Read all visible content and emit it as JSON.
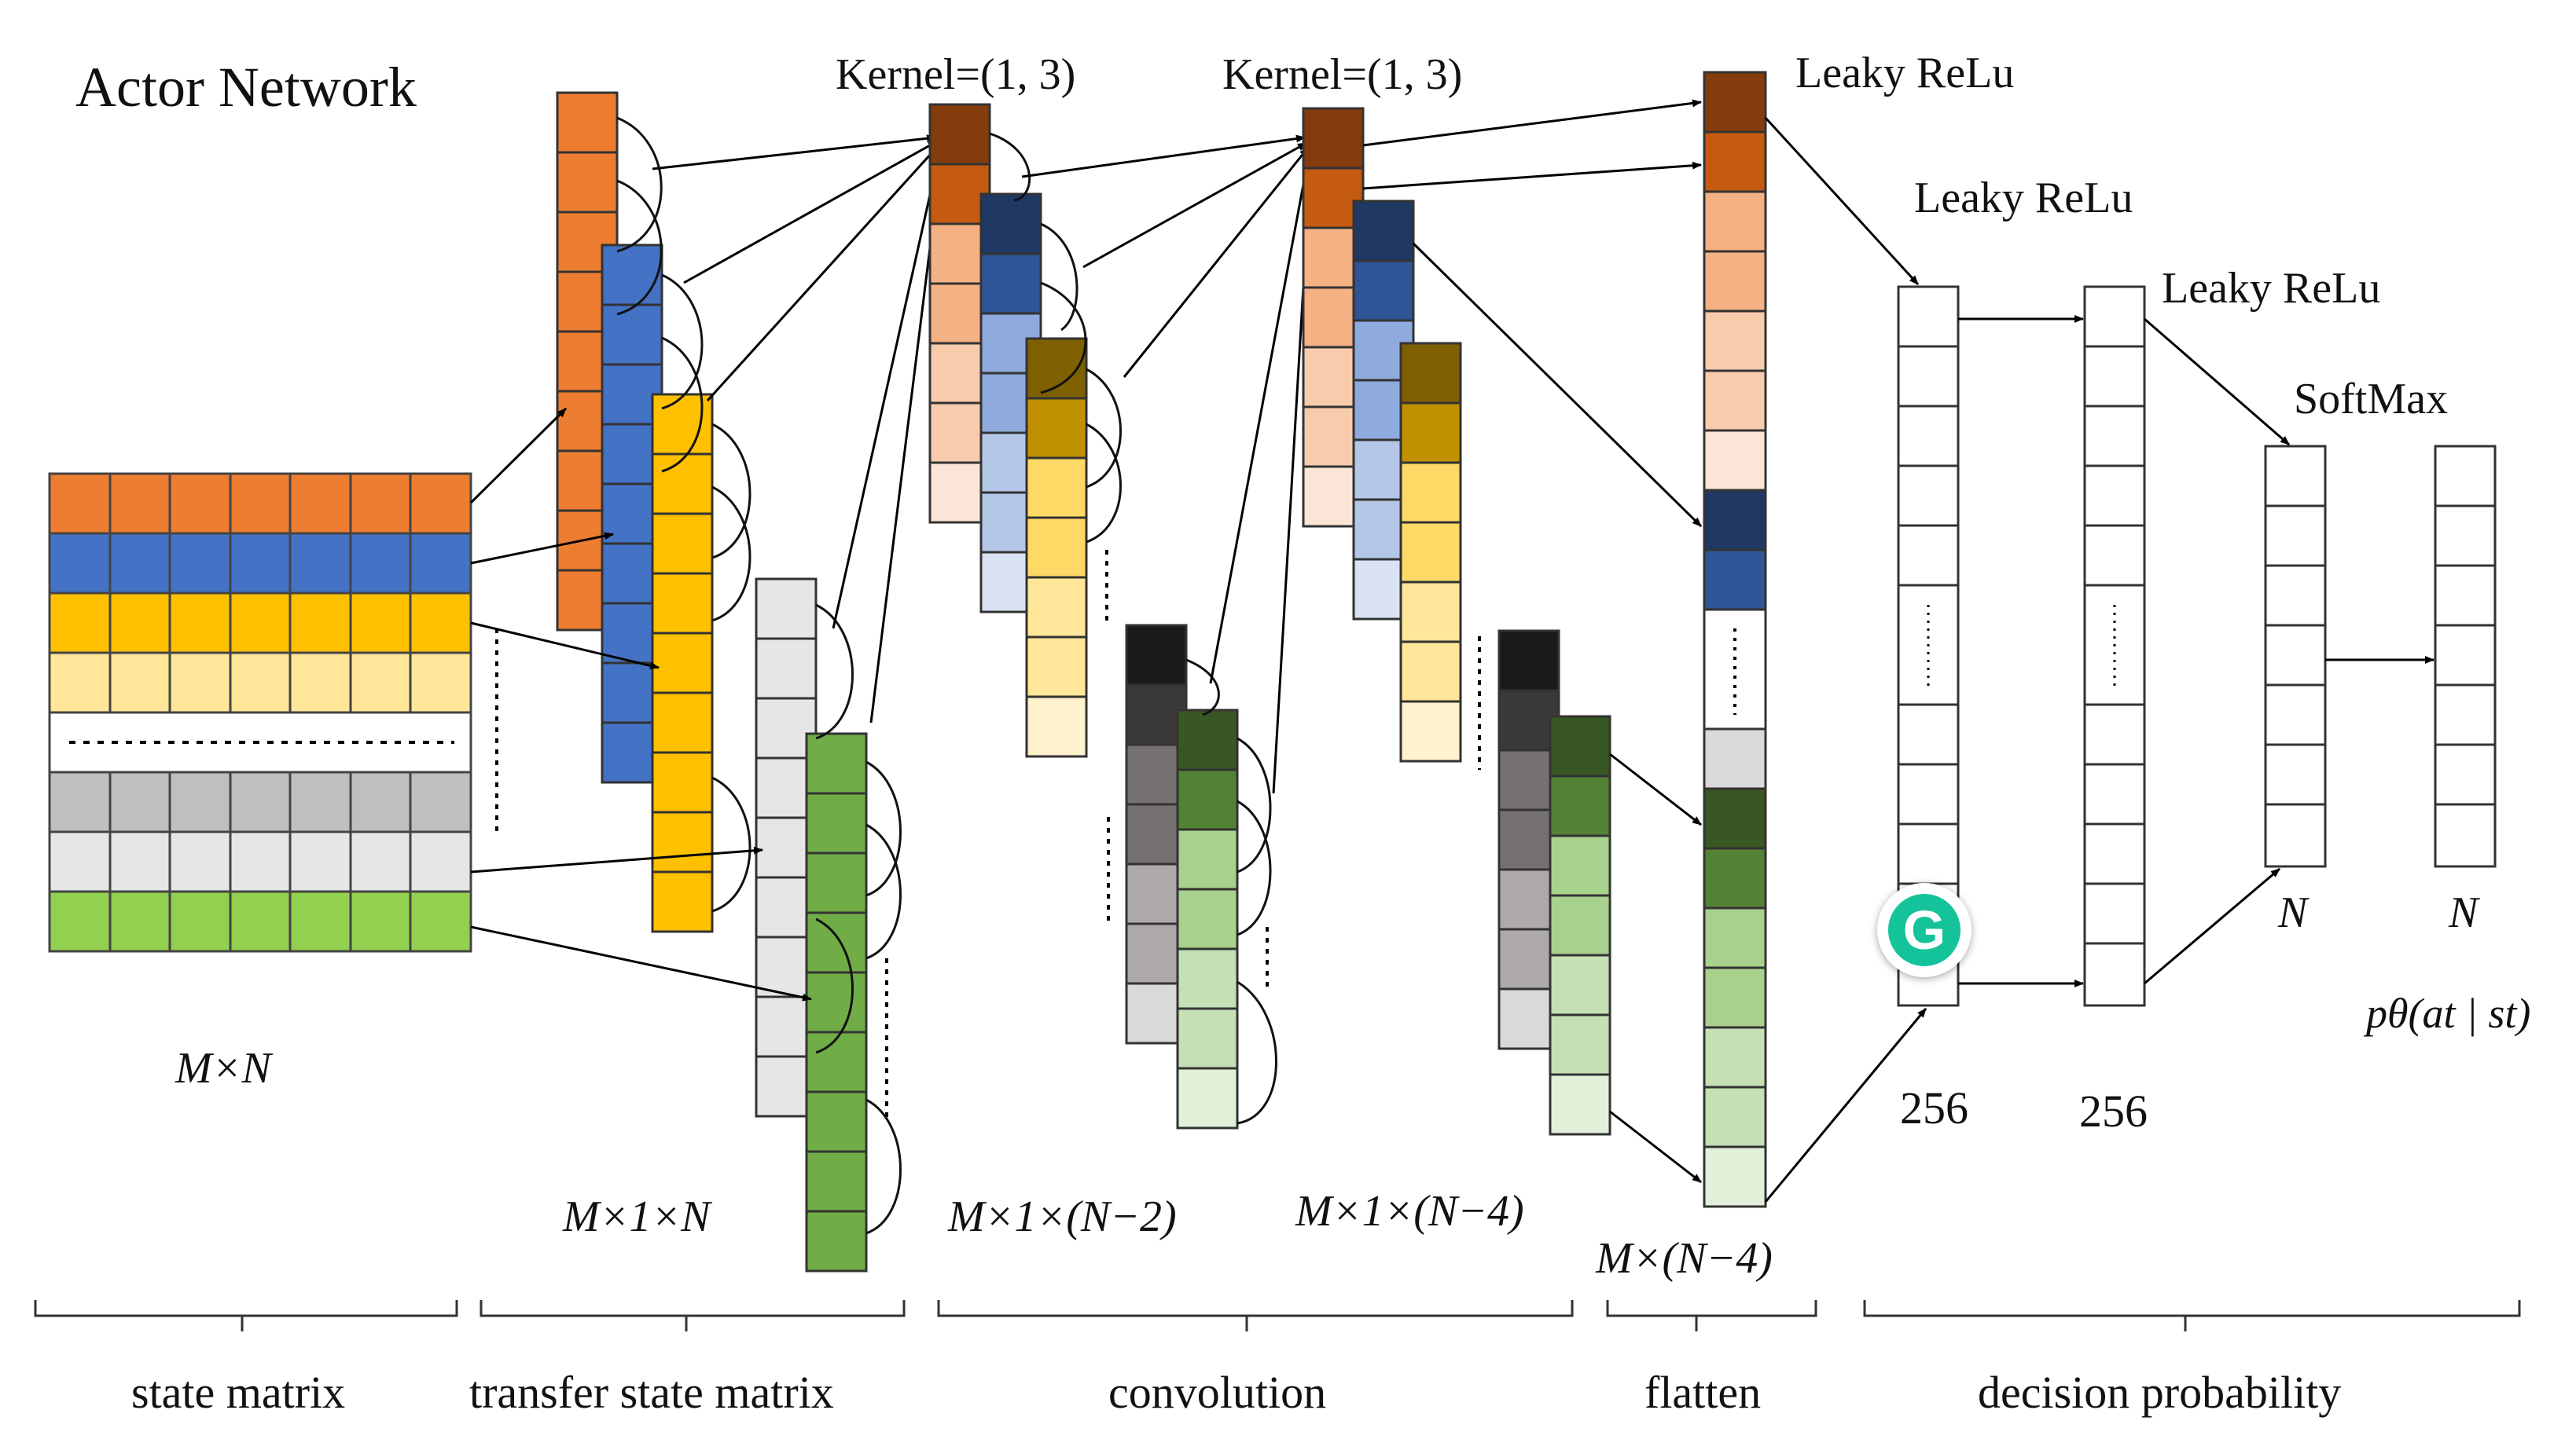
{
  "title": "Actor Network",
  "colors": {
    "orange": [
      "#ED7D31",
      "#F4B183",
      "#F8CBAD",
      "#FBE5D6"
    ],
    "orange_dark": [
      "#843C0C",
      "#C55A11"
    ],
    "blue": [
      "#4472C4",
      "#1F3864",
      "#2F5597",
      "#8FAADC",
      "#B4C7E7",
      "#DAE3F3"
    ],
    "gold": [
      "#FFC000",
      "#7F6000",
      "#BF9000",
      "#FFD966",
      "#FFE699",
      "#FFF2CC"
    ],
    "gray": [
      "#BFBFBF",
      "#D9D9D9",
      "#E7E6E6",
      "#000000",
      "#3B3838",
      "#767171",
      "#AEAAAA"
    ],
    "green": [
      "#70AD47",
      "#92D050",
      "#385723",
      "#548235",
      "#A9D18E",
      "#C5E0B4",
      "#E2F0D9"
    ]
  },
  "kernel_labels": [
    "Kernel=(1, 3)",
    "Kernel=(1, 3)"
  ],
  "activation_labels": [
    "Leaky ReLu",
    "Leaky ReLu",
    "Leaky ReLu",
    "SoftMax"
  ],
  "dim_labels": {
    "state": "M×N",
    "transfer": "M×1×N",
    "conv1": "M×1×(N−2)",
    "conv2": "M×1×(N−4)",
    "flatten": "M×(N−4)",
    "fc1": "256",
    "fc2": "256",
    "fc3": "N",
    "out": "N",
    "policy": "pθ(at | st)"
  },
  "sections": [
    "state matrix",
    "transfer state matrix",
    "convolution",
    "flatten",
    "decision probability"
  ],
  "badge": "G"
}
